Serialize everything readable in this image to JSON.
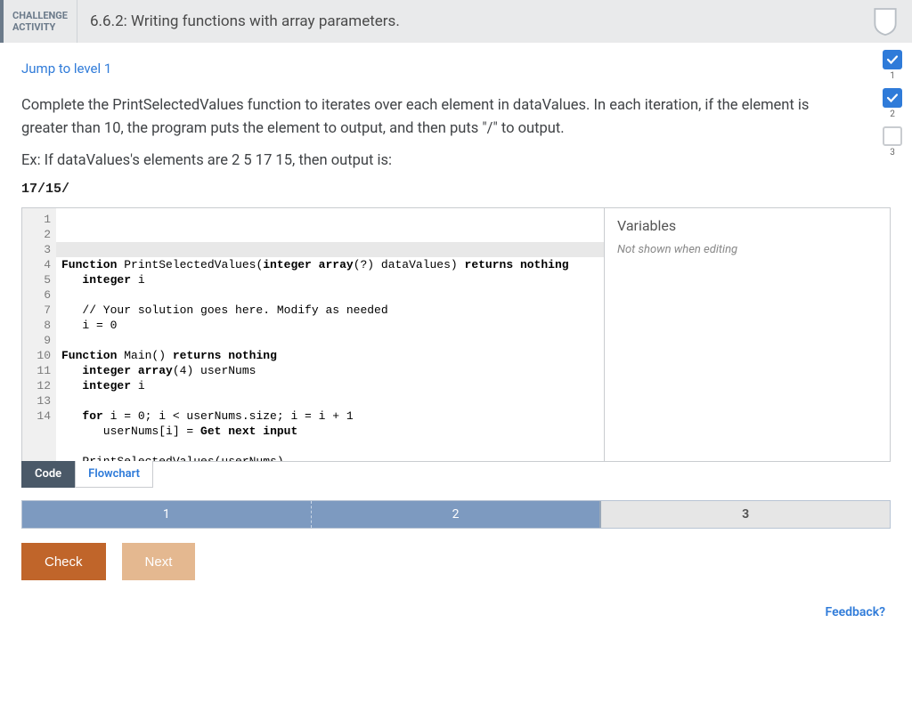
{
  "header": {
    "label_line1": "CHALLENGE",
    "label_line2": "ACTIVITY",
    "title": "6.6.2: Writing functions with array parameters."
  },
  "progress": {
    "items": [
      {
        "num": "1",
        "done": true
      },
      {
        "num": "2",
        "done": true
      },
      {
        "num": "3",
        "done": false
      }
    ]
  },
  "jump_link": "Jump to level 1",
  "instructions": "Complete the PrintSelectedValues function to iterates over each element in dataValues. In each iteration, if the element is greater than 10, the program puts the element to output, and then puts \"/\" to output.",
  "example_label": "Ex: If dataValues's elements are 2 5 17 15, then output is:",
  "example_output": "17/15/",
  "editor": {
    "line_count": 14,
    "highlight_line": 3,
    "lines": [
      "Function PrintSelectedValues(integer array(?) dataValues) returns nothing",
      "   integer i",
      "",
      "   // Your solution goes here. Modify as needed",
      "   i = 0",
      "",
      "Function Main() returns nothing",
      "   integer array(4) userNums",
      "   integer i",
      "",
      "   for i = 0; i < userNums.size; i = i + 1",
      "      userNums[i] = Get next input",
      "",
      "   PrintSelectedValues(userNums)"
    ],
    "vars_title": "Variables",
    "vars_note": "Not shown when editing"
  },
  "tabs": {
    "code": "Code",
    "flowchart": "Flowchart"
  },
  "steps": {
    "s1": "1",
    "s2": "2",
    "s3": "3"
  },
  "buttons": {
    "check": "Check",
    "next": "Next"
  },
  "feedback": "Feedback?",
  "colors": {
    "accent_blue": "#2f7bd9",
    "header_bg": "#e9eaeb",
    "header_border": "#6b7a8a",
    "tab_active_bg": "#4a5968",
    "step_bg": "#7d9ac0",
    "btn_check": "#c0652a",
    "btn_next": "#e4b890"
  }
}
